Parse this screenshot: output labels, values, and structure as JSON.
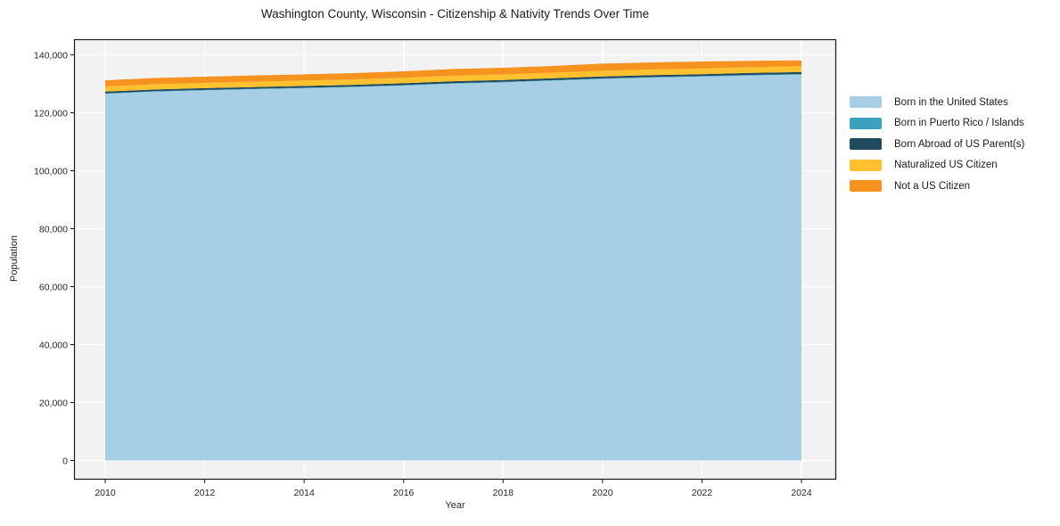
{
  "chart": {
    "title": "Washington County, Wisconsin - Citizenship & Nativity Trends Over Time",
    "xlabel": "Year",
    "ylabel": "Population"
  },
  "chart_data": {
    "type": "area",
    "stacked": true,
    "title": "Washington County, Wisconsin - Citizenship & Nativity Trends Over Time",
    "xlabel": "Year",
    "ylabel": "Population",
    "grid": true,
    "legend_position": "right",
    "plot_bg": "#f2f2f2",
    "grid_color": "#ffffff",
    "axis_color": "#1a1a1a",
    "text_color": "#262626",
    "xlim": [
      2009.4,
      2024.7
    ],
    "ylim": [
      0,
      145400
    ],
    "x": [
      2010,
      2011,
      2012,
      2013,
      2014,
      2015,
      2016,
      2017,
      2018,
      2019,
      2020,
      2021,
      2022,
      2023,
      2024
    ],
    "x_ticks": [
      2010,
      2012,
      2014,
      2016,
      2018,
      2020,
      2022,
      2024
    ],
    "y_ticks": [
      {
        "v": 0,
        "label": "0"
      },
      {
        "v": 20000,
        "label": "20,000"
      },
      {
        "v": 40000,
        "label": "40,000"
      },
      {
        "v": 60000,
        "label": "60,000"
      },
      {
        "v": 80000,
        "label": "80,000"
      },
      {
        "v": 100000,
        "label": "100,000"
      },
      {
        "v": 120000,
        "label": "120,000"
      },
      {
        "v": 140000,
        "label": "140,000"
      }
    ],
    "series": [
      {
        "name": "Born in the United States",
        "color": "#a6cfe5",
        "values": [
          126600,
          127300,
          127750,
          128150,
          128500,
          128900,
          129400,
          130100,
          130500,
          131100,
          131700,
          132150,
          132500,
          132900,
          133200
        ]
      },
      {
        "name": "Born in Puerto Rico / Islands",
        "color": "#3aa2bf",
        "values": [
          130,
          135,
          140,
          145,
          150,
          150,
          155,
          160,
          165,
          170,
          175,
          180,
          185,
          190,
          200
        ]
      },
      {
        "name": "Born Abroad of US Parent(s)",
        "color": "#204a5d",
        "values": [
          580,
          590,
          600,
          605,
          610,
          615,
          620,
          625,
          630,
          635,
          640,
          645,
          650,
          655,
          660
        ]
      },
      {
        "name": "Naturalized US Citizen",
        "color": "#fdc02f",
        "values": [
          1800,
          1820,
          1840,
          1850,
          1860,
          1880,
          1900,
          1920,
          1940,
          1950,
          1970,
          1990,
          2000,
          2010,
          2020
        ]
      },
      {
        "name": "Not a US Citizen",
        "color": "#f6921e",
        "values": [
          2090,
          2155,
          2120,
          2150,
          2130,
          2155,
          2225,
          2295,
          2315,
          2295,
          2465,
          2435,
          2365,
          2195,
          2020
        ]
      }
    ]
  }
}
